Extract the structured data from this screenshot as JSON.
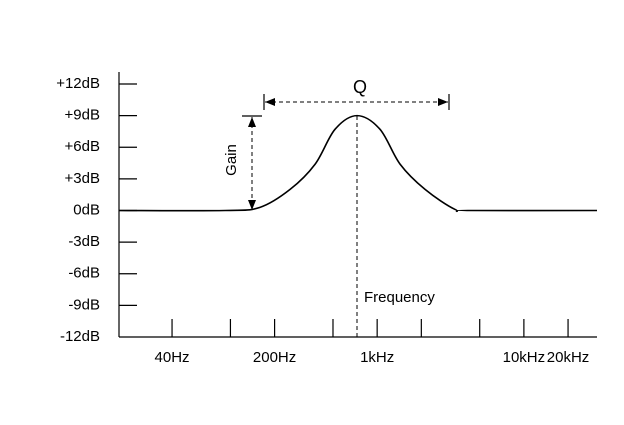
{
  "chart_data": {
    "type": "line",
    "log_x": true,
    "x": [
      17.4,
      92,
      159,
      255,
      378,
      516,
      729,
      1046,
      1432,
      2121,
      3396,
      4300,
      31500
    ],
    "series": [
      {
        "color": "#000000",
        "values": [
          0,
          0,
          0.3,
          2,
          4.4,
          7.7,
          9,
          7.7,
          4.4,
          2,
          0.1,
          0,
          0
        ]
      }
    ],
    "xlim": [
      17.4,
      31500
    ],
    "xticks": [
      {
        "value": 40,
        "label": "40Hz"
      },
      {
        "value": 200,
        "label": "200Hz"
      },
      {
        "value": 1000,
        "label": "1kHz"
      },
      {
        "value": 10000,
        "label": "10kHz"
      },
      {
        "value": 20000,
        "label": "20kHz"
      }
    ],
    "xminorticks": [
      100,
      500,
      2000,
      5000
    ],
    "ylim": [
      -12,
      12
    ],
    "yticks": [
      {
        "value": -12,
        "label": "-12dB"
      },
      {
        "value": -9,
        "label": "-9dB"
      },
      {
        "value": -6,
        "label": "-6dB"
      },
      {
        "value": -3,
        "label": "-3dB"
      },
      {
        "value": 0,
        "label": "0dB"
      },
      {
        "value": 3,
        "label": "+3dB"
      },
      {
        "value": 6,
        "label": "+6dB"
      },
      {
        "value": 9,
        "label": "+9dB"
      },
      {
        "value": 12,
        "label": "+12dB"
      }
    ],
    "annotations": [
      "Q",
      "Gain",
      "Frequency"
    ]
  }
}
